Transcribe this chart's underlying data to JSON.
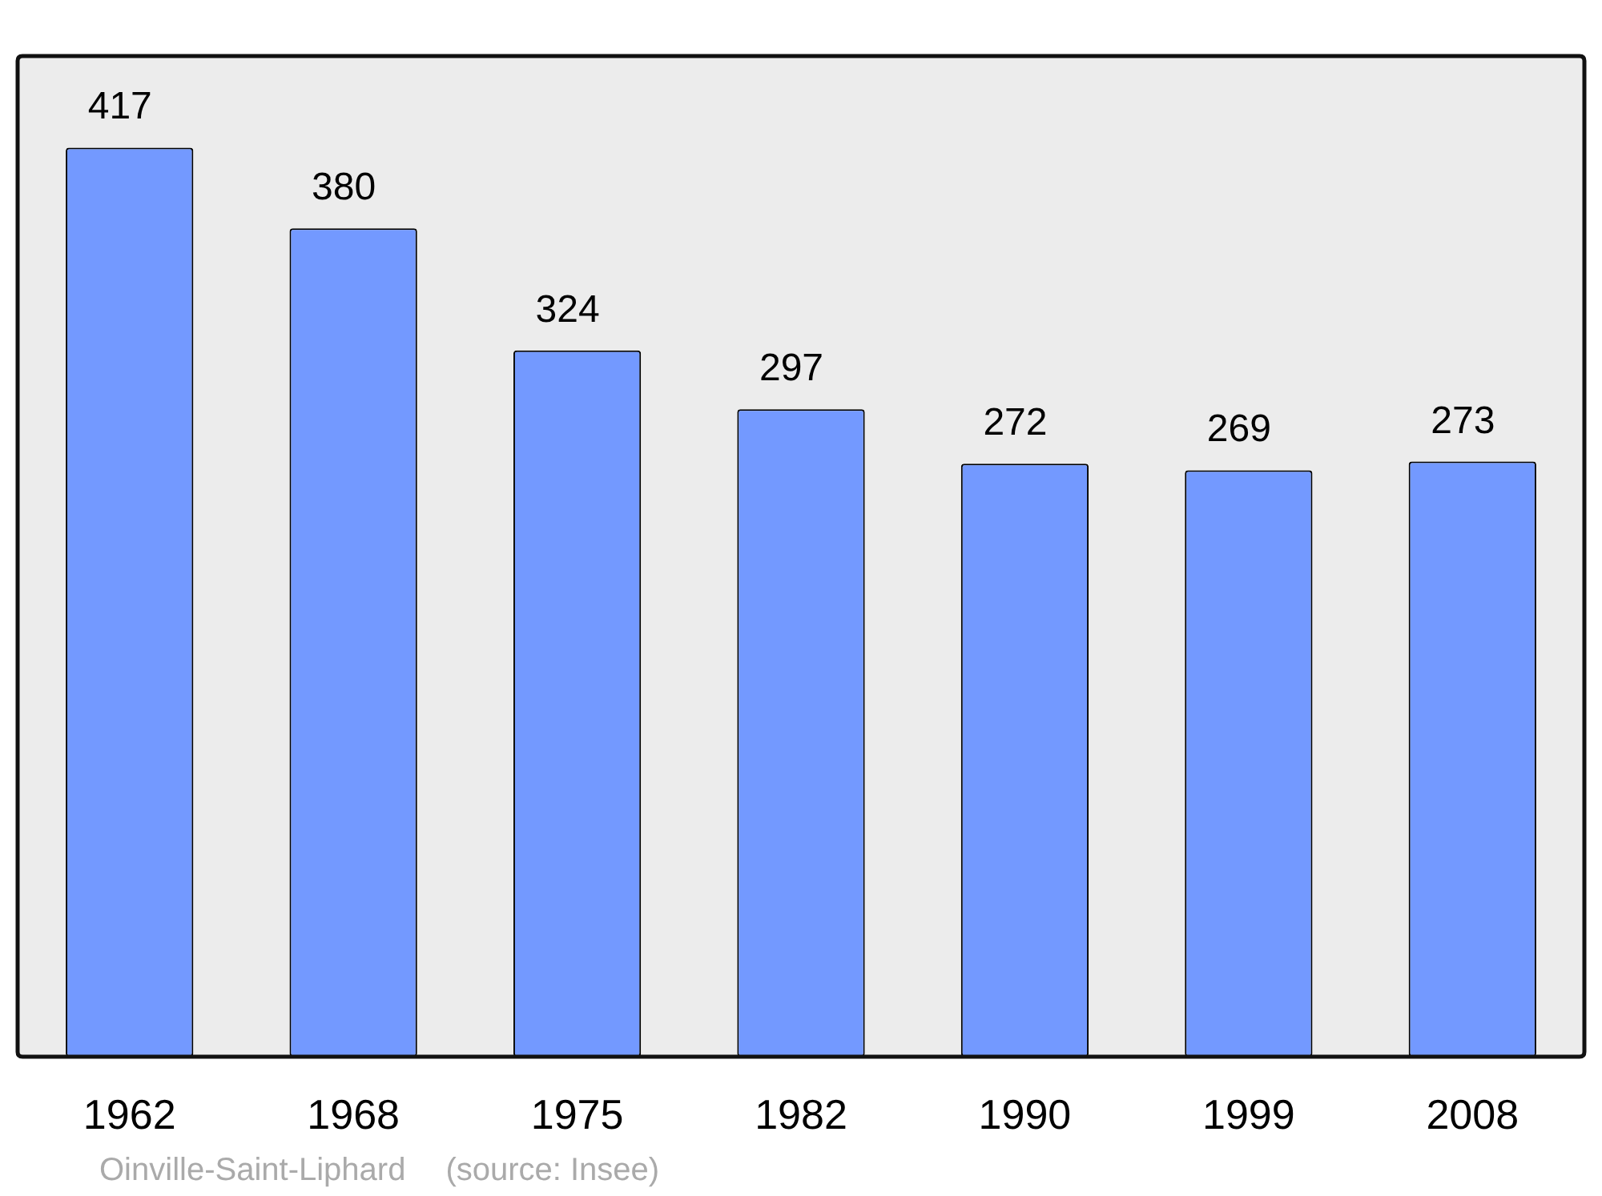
{
  "chart_data": {
    "type": "bar",
    "categories": [
      "1962",
      "1968",
      "1975",
      "1982",
      "1990",
      "1999",
      "2008"
    ],
    "values": [
      417,
      380,
      324,
      297,
      272,
      269,
      273
    ],
    "color": "#7399ff",
    "ylim": [
      0,
      459
    ],
    "tick_labels": "x",
    "legend": false,
    "data_labels": true,
    "annotations": [
      "Oinville-Saint-Liphard",
      "(source: Insee)"
    ]
  }
}
